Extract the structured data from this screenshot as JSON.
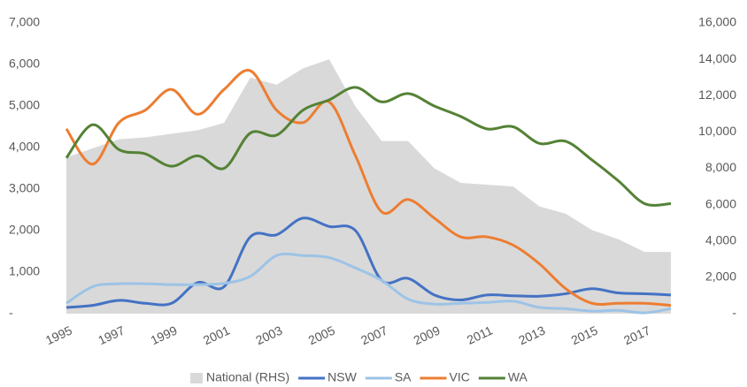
{
  "chart_data": {
    "type": "line",
    "x": [
      1995,
      1996,
      1997,
      1998,
      1999,
      2000,
      2001,
      2002,
      2003,
      2004,
      2005,
      2006,
      2007,
      2008,
      2009,
      2010,
      2011,
      2012,
      2013,
      2014,
      2015,
      2016,
      2017,
      2018
    ],
    "xlim": [
      1995,
      2018
    ],
    "xticks": [
      1995,
      1997,
      1999,
      2001,
      2003,
      2005,
      2007,
      2009,
      2011,
      2013,
      2015,
      2017
    ],
    "ylim": [
      0,
      7000
    ],
    "yticks": [
      {
        "value": 0,
        "label": "-"
      },
      {
        "value": 1000,
        "label": "1,000"
      },
      {
        "value": 2000,
        "label": "2,000"
      },
      {
        "value": 3000,
        "label": "3,000"
      },
      {
        "value": 4000,
        "label": "4,000"
      },
      {
        "value": 5000,
        "label": "5,000"
      },
      {
        "value": 6000,
        "label": "6,000"
      },
      {
        "value": 7000,
        "label": "7,000"
      }
    ],
    "y2lim": [
      0,
      16000
    ],
    "y2ticks": [
      {
        "value": 0,
        "label": "-"
      },
      {
        "value": 2000,
        "label": "2,000"
      },
      {
        "value": 4000,
        "label": "4,000"
      },
      {
        "value": 6000,
        "label": "6,000"
      },
      {
        "value": 8000,
        "label": "8,000"
      },
      {
        "value": 10000,
        "label": "10,000"
      },
      {
        "value": 12000,
        "label": "12,000"
      },
      {
        "value": 14000,
        "label": "14,000"
      },
      {
        "value": 16000,
        "label": "16,000"
      }
    ],
    "legend": "bottom",
    "series": [
      {
        "name": "National (RHS)",
        "color": "#d9d9d9",
        "axis": "y2",
        "style": "area",
        "values": [
          8600,
          9100,
          9600,
          9700,
          9900,
          10100,
          10500,
          13000,
          12600,
          13500,
          14000,
          11400,
          9500,
          9500,
          8000,
          7200,
          7100,
          7000,
          5900,
          5500,
          4600,
          4100,
          3400,
          3400
        ]
      },
      {
        "name": "NSW",
        "color": "#4472c4",
        "values": [
          150,
          200,
          320,
          250,
          250,
          750,
          650,
          1850,
          1900,
          2300,
          2100,
          2000,
          800,
          850,
          450,
          330,
          450,
          430,
          420,
          480,
          600,
          500,
          480,
          450
        ]
      },
      {
        "name": "SA",
        "color": "#9dc3e6",
        "values": [
          250,
          650,
          720,
          720,
          700,
          700,
          730,
          900,
          1400,
          1400,
          1350,
          1100,
          800,
          350,
          230,
          250,
          270,
          300,
          150,
          120,
          60,
          80,
          20,
          120
        ]
      },
      {
        "name": "VIC",
        "color": "#ed7d31",
        "values": [
          4450,
          3600,
          4600,
          4900,
          5400,
          4800,
          5400,
          5850,
          4900,
          4600,
          5100,
          3800,
          2450,
          2750,
          2300,
          1850,
          1850,
          1650,
          1200,
          600,
          250,
          250,
          250,
          200
        ]
      },
      {
        "name": "WA",
        "color": "#548235",
        "values": [
          3750,
          4550,
          3950,
          3850,
          3550,
          3800,
          3500,
          4350,
          4300,
          4900,
          5150,
          5450,
          5100,
          5300,
          5000,
          4750,
          4450,
          4500,
          4100,
          4150,
          3700,
          3200,
          2650,
          2650
        ]
      }
    ]
  }
}
